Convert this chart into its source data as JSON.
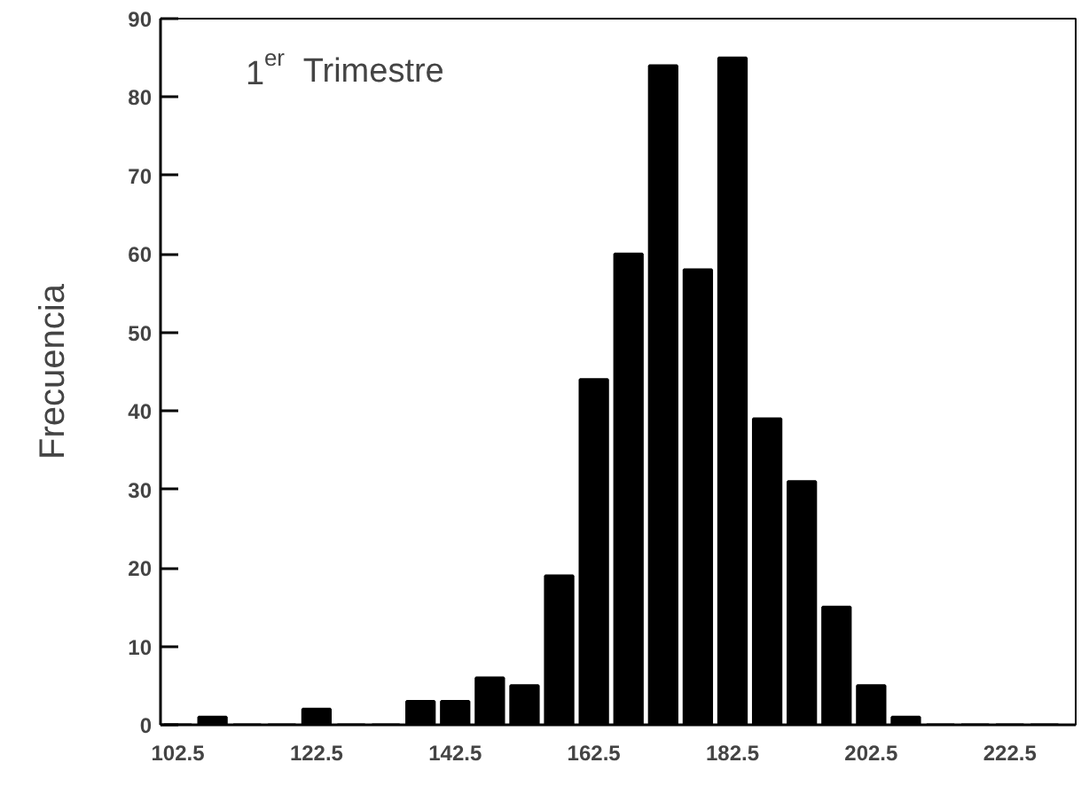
{
  "chart_data": {
    "type": "histogram",
    "title": "1$^{er}$ Trimestre",
    "ylabel": "Frecuencia",
    "bins": [
      100,
      105,
      110,
      115,
      120,
      125,
      130,
      135,
      140,
      145,
      150,
      155,
      160,
      165,
      170,
      175,
      180,
      185,
      190,
      195,
      200,
      205,
      210,
      215,
      220,
      225,
      230
    ],
    "values": [
      0,
      1,
      0,
      0,
      2,
      0,
      0,
      3,
      3,
      6,
      5,
      19,
      44,
      60,
      84,
      58,
      85,
      39,
      31,
      15,
      5,
      1,
      0,
      0,
      0,
      0
    ],
    "color": "#000000",
    "xlim": [
      100,
      232
    ],
    "ylim": [
      0,
      90
    ],
    "xticks": [
      102.5,
      122.5,
      142.5,
      162.5,
      182.5,
      202.5,
      222.5
    ],
    "yticks": [
      0,
      10,
      20,
      30,
      40,
      50,
      60,
      70,
      80,
      90
    ],
    "grid": false
  }
}
